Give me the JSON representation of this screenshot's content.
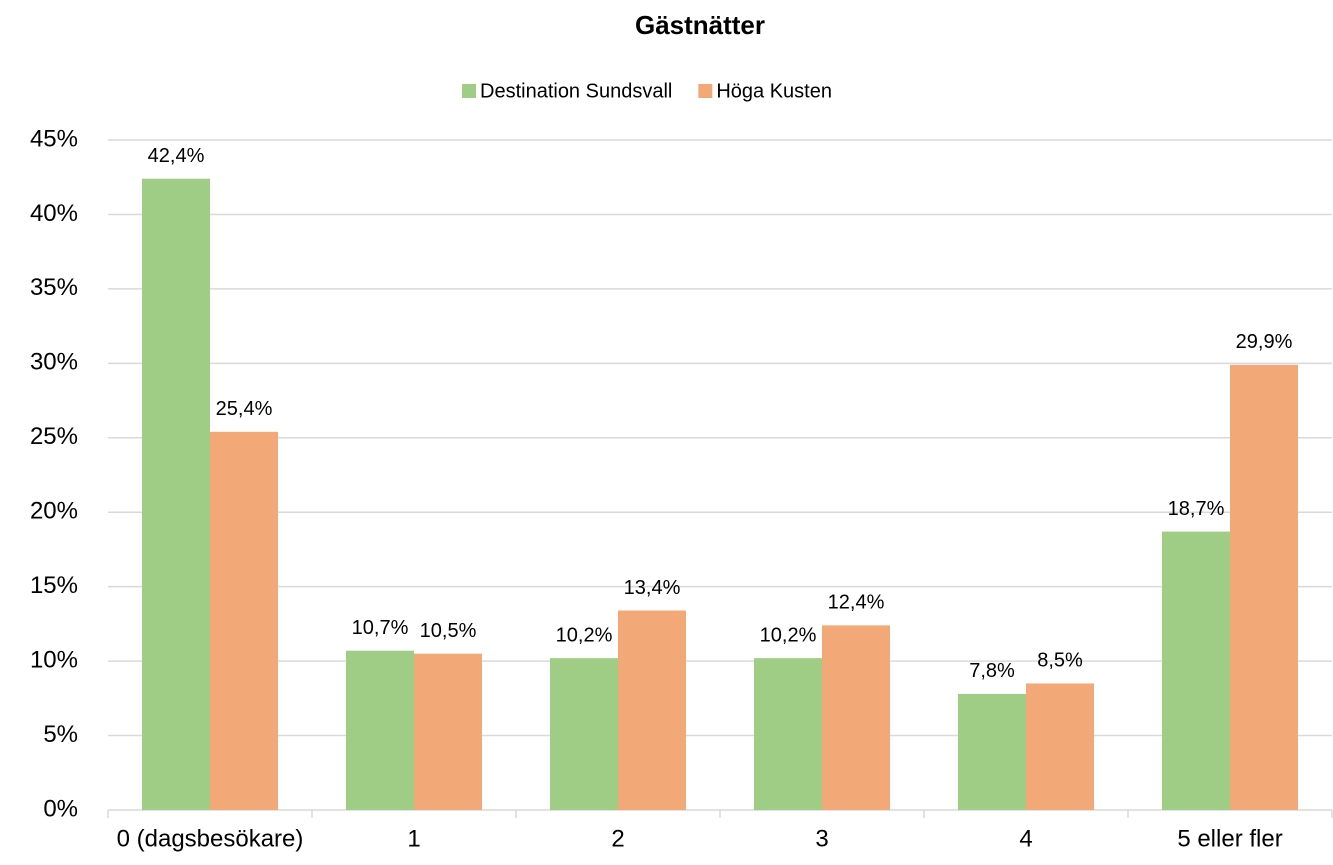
{
  "chart_data": {
    "type": "bar",
    "title": "Gästnätter",
    "categories": [
      "0 (dagsbesökare)",
      "1",
      "2",
      "3",
      "4",
      "5 eller fler"
    ],
    "series": [
      {
        "name": "Destination Sundsvall",
        "color": "#a0cd85",
        "values": [
          42.4,
          10.7,
          10.2,
          10.2,
          7.8,
          18.7
        ],
        "value_labels": [
          "42,4%",
          "10,7%",
          "10,2%",
          "10,2%",
          "7,8%",
          "18,7%"
        ]
      },
      {
        "name": "Höga Kusten",
        "color": "#f3a977",
        "values": [
          25.4,
          10.5,
          13.4,
          12.4,
          8.5,
          29.9
        ],
        "value_labels": [
          "25,4%",
          "10,5%",
          "13,4%",
          "12,4%",
          "8,5%",
          "29,9%"
        ]
      }
    ],
    "ylim": [
      0,
      45
    ],
    "yticks": [
      {
        "value": 0,
        "label": "0%"
      },
      {
        "value": 5,
        "label": "5%"
      },
      {
        "value": 10,
        "label": "10%"
      },
      {
        "value": 15,
        "label": "15%"
      },
      {
        "value": 20,
        "label": "20%"
      },
      {
        "value": 25,
        "label": "25%"
      },
      {
        "value": 30,
        "label": "30%"
      },
      {
        "value": 35,
        "label": "35%"
      },
      {
        "value": 40,
        "label": "40%"
      },
      {
        "value": 45,
        "label": "45%"
      }
    ],
    "grid": true,
    "legend": "top"
  }
}
